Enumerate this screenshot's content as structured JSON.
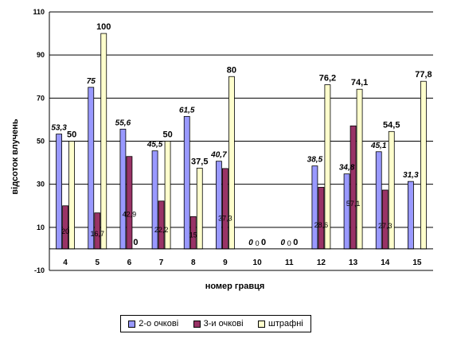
{
  "chart_data": {
    "type": "bar",
    "xlabel": "номер гравця",
    "ylabel": "відсоток влучень",
    "ylim": [
      -10,
      110
    ],
    "yticks": [
      -10,
      10,
      30,
      50,
      70,
      90,
      110
    ],
    "grid": true,
    "legend": "bottom",
    "categories": [
      "4",
      "5",
      "6",
      "7",
      "8",
      "9",
      "10",
      "11",
      "12",
      "13",
      "14",
      "15"
    ],
    "series": [
      {
        "name": "2-о очкові",
        "color": "#9999ff",
        "values": [
          53.3,
          75,
          55.6,
          45.5,
          61.5,
          40.7,
          0,
          0,
          38.5,
          34.8,
          45.1,
          31.3
        ],
        "labels": [
          "53,3",
          "75",
          "55,6",
          "45,5",
          "61,5",
          "40,7",
          "0",
          "0",
          "38,5",
          "34,8",
          "45,1",
          "31,3"
        ]
      },
      {
        "name": "3-и очкові",
        "color": "#993366",
        "values": [
          20,
          16.7,
          42.9,
          22.2,
          15,
          37.3,
          0,
          0,
          28.6,
          57.1,
          27.3,
          null
        ],
        "labels": [
          "20",
          "16,7",
          "42,9",
          "22,2",
          "15",
          "37,3",
          "0",
          "0",
          "28,6",
          "57,1",
          "27,3",
          ""
        ]
      },
      {
        "name": "штрафні",
        "color": "#ffffcc",
        "values": [
          50,
          100,
          0,
          50,
          37.5,
          80,
          0,
          0,
          76.2,
          74.1,
          54.5,
          77.8
        ],
        "labels": [
          "50",
          "100",
          "0",
          "50",
          "37,5",
          "80",
          "0",
          "0",
          "76,2",
          "74,1",
          "54,5",
          "77,8"
        ]
      }
    ]
  }
}
